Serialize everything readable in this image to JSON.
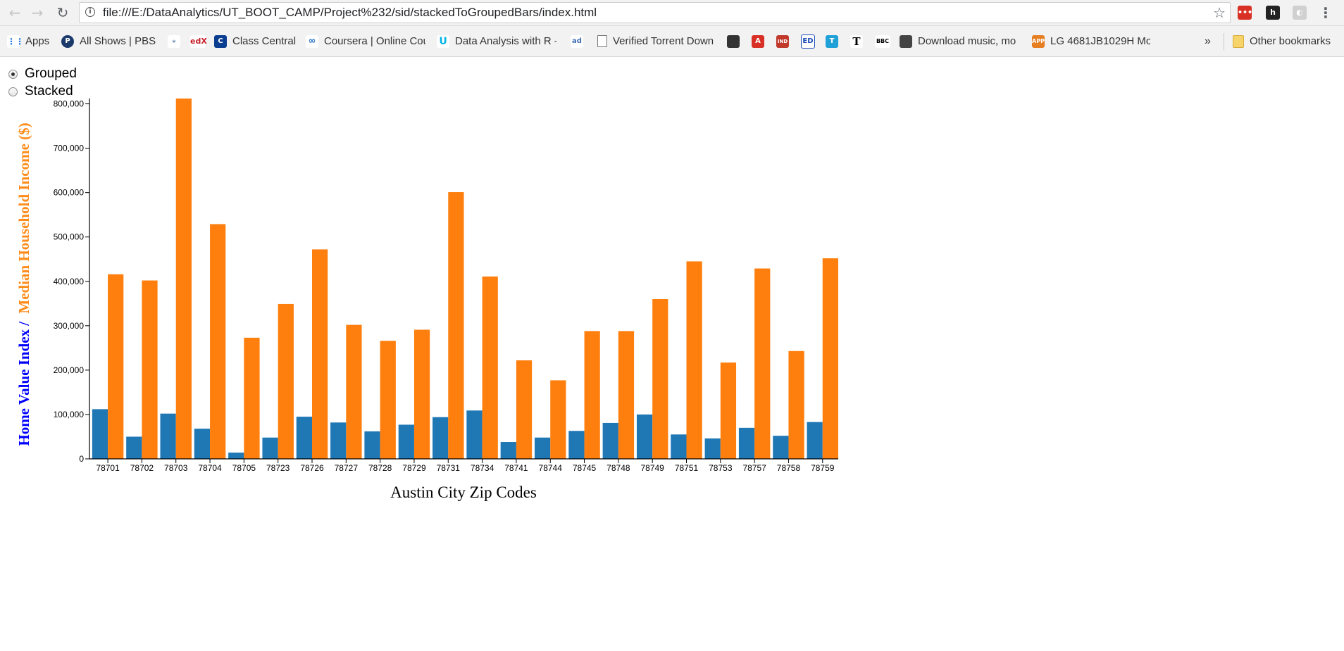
{
  "browser": {
    "url": "file:///E:/DataAnalytics/UT_BOOT_CAMP/Project%232/sid/stackedToGroupedBars/index.html",
    "bookmarks": [
      {
        "label": "Apps",
        "icon": "apps-grid-icon"
      },
      {
        "label": "All Shows | PBS",
        "icon": "pbs-icon"
      },
      {
        "label": "",
        "icon": "bookmark-icon"
      },
      {
        "label": "",
        "icon": "edx-icon"
      },
      {
        "label": "Class Central",
        "icon": "class-central-icon"
      },
      {
        "label": "Coursera | Online Cou",
        "icon": "coursera-icon"
      },
      {
        "label": "Data Analysis with R -",
        "icon": "udacity-icon"
      },
      {
        "label": "",
        "icon": "bookmark-icon"
      },
      {
        "label": "Verified Torrent Down",
        "icon": "page-icon"
      },
      {
        "label": "",
        "icon": "bookmark-icon"
      },
      {
        "label": "",
        "icon": "bookmark-icon"
      },
      {
        "label": "",
        "icon": "bookmark-icon"
      },
      {
        "label": "",
        "icon": "bookmark-icon"
      },
      {
        "label": "",
        "icon": "bookmark-icon"
      },
      {
        "label": "",
        "icon": "nyt-icon"
      },
      {
        "label": "",
        "icon": "bbc-icon"
      },
      {
        "label": "Download music, mo",
        "icon": "bookmark-icon"
      },
      {
        "label": "LG 4681JB1029H Mo",
        "icon": "app-icon"
      }
    ],
    "overflow": "»",
    "other_bookmarks": "Other bookmarks"
  },
  "controls": {
    "grouped_label": "Grouped",
    "stacked_label": "Stacked",
    "selected": "grouped"
  },
  "chart_data": {
    "type": "bar",
    "mode": "grouped",
    "categories": [
      "78701",
      "78702",
      "78703",
      "78704",
      "78705",
      "78723",
      "78726",
      "78727",
      "78728",
      "78729",
      "78731",
      "78734",
      "78741",
      "78744",
      "78745",
      "78748",
      "78749",
      "78751",
      "78753",
      "78757",
      "78758",
      "78759"
    ],
    "series": [
      {
        "name": "Home Value Index",
        "color": "#1f77b4",
        "values": [
          112000,
          50000,
          102000,
          68000,
          14000,
          48000,
          95000,
          82000,
          62000,
          77000,
          94000,
          109000,
          38000,
          48000,
          63000,
          81000,
          100000,
          55000,
          46000,
          70000,
          52000,
          83000
        ]
      },
      {
        "name": "Median Household Income ($)",
        "color": "#ff7f0e",
        "values": [
          416000,
          402000,
          812000,
          529000,
          273000,
          349000,
          472000,
          302000,
          266000,
          291000,
          601000,
          411000,
          222000,
          177000,
          288000,
          288000,
          360000,
          445000,
          217000,
          429000,
          243000,
          452000
        ]
      }
    ],
    "xlabel": "Austin City Zip Codes",
    "ylabel_part1": "Home Value Index /",
    "ylabel_part2": "Median Household Income ($)",
    "ylabel_colors": [
      "#0000ff",
      "#ff8c1a"
    ],
    "ylim": [
      0,
      812000
    ],
    "yticks": [
      0,
      100000,
      200000,
      300000,
      400000,
      500000,
      600000,
      700000,
      800000
    ],
    "grid": false,
    "legend": "none"
  }
}
